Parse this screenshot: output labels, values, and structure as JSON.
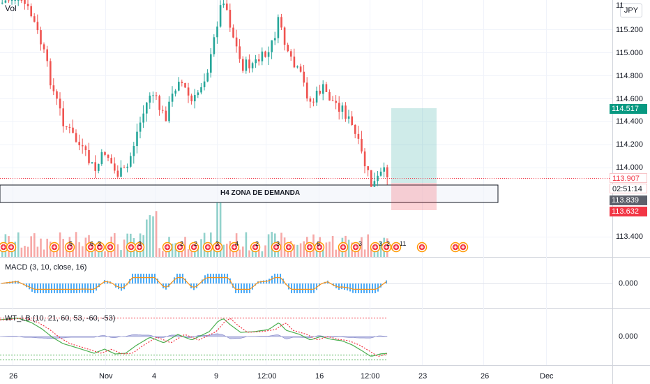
{
  "header": {
    "volume_label": "Vol",
    "currency_button": "JPY"
  },
  "price_axis": {
    "labels": [
      "115.200",
      "115.000",
      "114.800",
      "114.600",
      "114.400",
      "114.200",
      "114.000",
      "113.400"
    ],
    "partial_label": "11"
  },
  "price_tags": {
    "take_profit": {
      "value": "114.517",
      "color": "#089981"
    },
    "last": {
      "value": "113.907",
      "color": "#f23645"
    },
    "countdown": {
      "value": "02:51:14",
      "color": "#f23645"
    },
    "entry": {
      "value": "113.839",
      "color": "#5d606b"
    },
    "stop_loss": {
      "value": "113.632",
      "color": "#f23645"
    }
  },
  "zone": {
    "label": "H4 ZONA DE DEMANDA"
  },
  "macd": {
    "title": "MACD (3, 10, close, 16)",
    "zero_label": "0.000"
  },
  "wavetrend": {
    "title": "WT_LB (10, 21, 60, 53, -60, -53)",
    "zero_label": "0.000"
  },
  "time_axis": {
    "labels": [
      "26",
      "Nov",
      "4",
      "9",
      "12:00",
      "16",
      "12:00",
      "23",
      "26",
      "Dec"
    ]
  },
  "event_markers": {
    "numbers": [
      "5",
      "6",
      "3",
      "3",
      "2",
      "2",
      "3",
      "4",
      "2",
      "3",
      "6",
      "3",
      "3",
      "2",
      "11"
    ]
  },
  "colors": {
    "up": "#26a69a",
    "down": "#ef5350",
    "ma": "#f7931a",
    "wt_green": "#4caf50",
    "wt_red": "#f23645",
    "wt_fill": "#9598d5"
  }
}
